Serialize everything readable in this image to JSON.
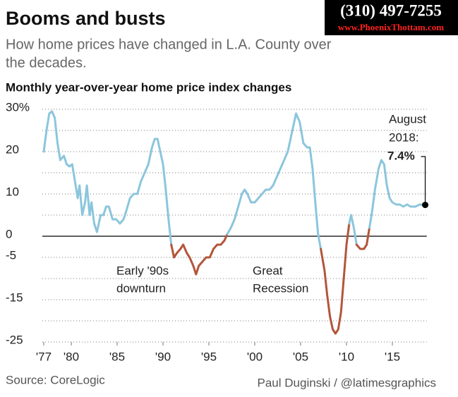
{
  "chart_data": {
    "type": "line",
    "title": "Booms and busts",
    "subtitle": [
      "How home prices have changed in L.A. County over",
      "the decades."
    ],
    "chart_title": "Monthly year-over-year home price index changes",
    "source": "Source: CoreLogic",
    "credit": "Paul Duginski / @latimesgraphics",
    "watermark": {
      "phone": "(310) 497-7255",
      "url": "www.PhoenixThottam.com"
    },
    "annotations": [
      [
        "Early '90s",
        "downturn"
      ],
      [
        "Great",
        "Recession"
      ]
    ],
    "highlight": {
      "x": 2018.58,
      "value": 7.4,
      "label": "7.4%",
      "note": [
        "August",
        "2018:"
      ]
    },
    "positive_color": "#8bc6dc",
    "negative_color": "#b3553a",
    "xlim": [
      1977,
      2018.75
    ],
    "xticks": [
      {
        "value": 1977,
        "label": "'77"
      },
      {
        "value": 1980,
        "label": "'80"
      },
      {
        "value": 1985,
        "label": "'85"
      },
      {
        "value": 1990,
        "label": "'90"
      },
      {
        "value": 1995,
        "label": "'95"
      },
      {
        "value": 2000,
        "label": "'00"
      },
      {
        "value": 2005,
        "label": "'05"
      },
      {
        "value": 2010,
        "label": "'10"
      },
      {
        "value": 2015,
        "label": "'15"
      }
    ],
    "ylim": [
      -25,
      30
    ],
    "yticks": [
      {
        "value": 30,
        "label": "30%"
      },
      20,
      10,
      0,
      -5,
      -15,
      -25
    ],
    "yticks_minor": [
      25,
      15,
      5,
      -10,
      -20
    ],
    "grid": true,
    "x": [
      1977.0,
      1977.3,
      1977.6,
      1977.9,
      1978.2,
      1978.5,
      1978.8,
      1979.2,
      1979.5,
      1979.8,
      1980.1,
      1980.4,
      1980.7,
      1980.9,
      1981.2,
      1981.5,
      1981.7,
      1982.0,
      1982.2,
      1982.5,
      1982.8,
      1983.2,
      1983.5,
      1983.8,
      1984.1,
      1984.5,
      1984.9,
      1985.3,
      1985.7,
      1986.0,
      1986.4,
      1986.8,
      1987.2,
      1987.6,
      1988.0,
      1988.4,
      1988.8,
      1989.1,
      1989.4,
      1989.7,
      1990.0,
      1990.3,
      1990.6,
      1990.9,
      1991.2,
      1991.5,
      1991.9,
      1992.2,
      1992.6,
      1992.9,
      1993.3,
      1993.6,
      1993.9,
      1994.3,
      1994.7,
      1995.1,
      1995.5,
      1995.9,
      1996.3,
      1996.7,
      1997.0,
      1997.4,
      1997.8,
      1998.2,
      1998.6,
      1998.9,
      1999.2,
      1999.6,
      2000.0,
      2000.4,
      2000.8,
      2001.2,
      2001.6,
      2002.0,
      2002.4,
      2002.8,
      2003.2,
      2003.6,
      2004.0,
      2004.5,
      2004.9,
      2005.3,
      2005.7,
      2006.0,
      2006.3,
      2006.6,
      2006.9,
      2007.2,
      2007.6,
      2007.9,
      2008.2,
      2008.5,
      2008.8,
      2009.1,
      2009.4,
      2009.7,
      2010.0,
      2010.3,
      2010.5,
      2010.8,
      2011.1,
      2011.5,
      2011.9,
      2012.2,
      2012.5,
      2012.8,
      2013.1,
      2013.5,
      2013.8,
      2014.1,
      2014.4,
      2014.7,
      2015.0,
      2015.4,
      2015.8,
      2016.2,
      2016.6,
      2017.0,
      2017.5,
      2018.0,
      2018.58
    ],
    "values": [
      20,
      25,
      29,
      29.5,
      28,
      22,
      18,
      19,
      17,
      16.5,
      17,
      13,
      9,
      12,
      5,
      8,
      12,
      5,
      8,
      3,
      1,
      5,
      5,
      7,
      7,
      4,
      4,
      3,
      4,
      6,
      9,
      10,
      10,
      13,
      15,
      17,
      21,
      23,
      23,
      20,
      17,
      11,
      4,
      -2,
      -5,
      -4,
      -3,
      -2,
      -4,
      -5,
      -7,
      -9,
      -7,
      -6,
      -5,
      -5,
      -3,
      -2,
      -2,
      -1,
      0.5,
      2,
      4,
      7,
      10,
      11,
      10,
      8,
      8,
      9,
      10,
      11,
      11,
      12,
      14,
      16,
      18,
      20,
      24,
      29,
      27,
      22,
      21,
      21,
      16,
      8,
      0.5,
      -3,
      -8,
      -14,
      -19,
      -22,
      -23,
      -22,
      -18,
      -10,
      -2,
      3,
      5,
      2,
      -2,
      -3,
      -3,
      -2,
      2,
      6,
      11,
      16,
      18,
      17,
      12,
      9,
      8,
      7.5,
      7.5,
      7,
      7.5,
      7,
      7,
      7.5,
      7.4
    ]
  }
}
